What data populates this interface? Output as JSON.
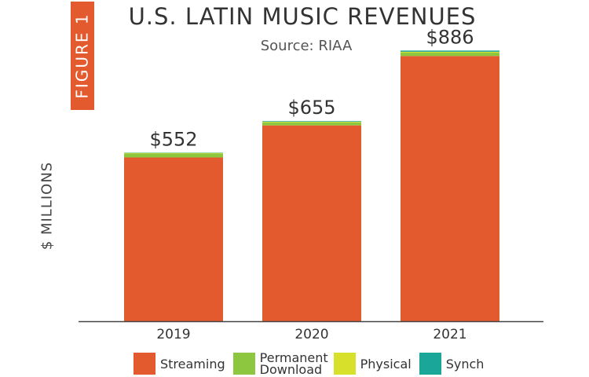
{
  "figure_label": "FIGURE 1",
  "chart_data": {
    "type": "bar",
    "stacked": true,
    "title": "U.S. LATIN MUSIC REVENUES",
    "subtitle": "Source: RIAA",
    "ylabel": "$ MILLIONS",
    "xlabel": "",
    "categories": [
      "2019",
      "2020",
      "2021"
    ],
    "totals": [
      552,
      655,
      886
    ],
    "total_labels": [
      "$552",
      "$655",
      "$886"
    ],
    "ylim": [
      0,
      1000
    ],
    "series": [
      {
        "name": "Streaming",
        "color": "#e45a2f",
        "values": [
          536,
          641,
          868
        ]
      },
      {
        "name": "Permanent Download",
        "color": "#8dc63f",
        "values": [
          13,
          10,
          11
        ]
      },
      {
        "name": "Physical",
        "color": "#d7e02a",
        "values": [
          2,
          2,
          3
        ]
      },
      {
        "name": "Synch",
        "color": "#1aa79a",
        "values": [
          1,
          2,
          4
        ]
      }
    ],
    "legend_position": "bottom"
  }
}
